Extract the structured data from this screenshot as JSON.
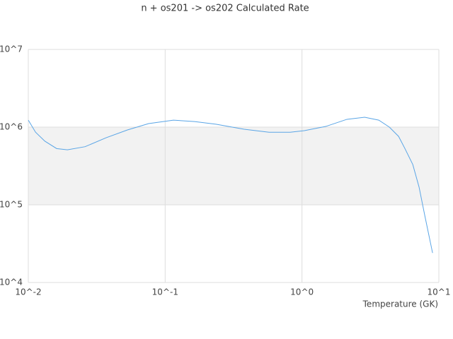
{
  "chart_data": {
    "type": "line",
    "title": "n + os201 -> os202 Calculated Rate",
    "x_label": "Temperature (GK)",
    "log_x": true,
    "log_y": true,
    "grid": true,
    "band_color": "#f2f2f2",
    "xlim": [
      0.01,
      10
    ],
    "ylim": [
      10000,
      10000000
    ],
    "xticks": [
      {
        "value": 0.01,
        "label": "10^-2"
      },
      {
        "value": 0.1,
        "label": "10^-1"
      },
      {
        "value": 1,
        "label": "10^0"
      },
      {
        "value": 10,
        "label": "10^1"
      }
    ],
    "yticks": [
      {
        "value": 10000,
        "label": "10^4"
      },
      {
        "value": 100000,
        "label": "10^5"
      },
      {
        "value": 1000000,
        "label": "10^6"
      },
      {
        "value": 10000000,
        "label": "10^7"
      }
    ],
    "x": [
      0.01,
      0.0113,
      0.0132,
      0.0161,
      0.0193,
      0.026,
      0.037,
      0.053,
      0.0757,
      0.115,
      0.164,
      0.235,
      0.378,
      0.574,
      0.82,
      1.04,
      1.49,
      2.13,
      2.87,
      3.64,
      4.35,
      5.08,
      5.65,
      6.45,
      7.17,
      7.89,
      9.0
    ],
    "series": [
      {
        "name": "rate",
        "color": "#5aa5e6",
        "values": [
          1230000,
          860000,
          660000,
          530000,
          510000,
          560000,
          730000,
          920000,
          1110000,
          1230000,
          1180000,
          1090000,
          940000,
          860000,
          860000,
          900000,
          1020000,
          1260000,
          1340000,
          1230000,
          1000000,
          760000,
          530000,
          330000,
          169000,
          73000,
          24000
        ]
      }
    ]
  }
}
